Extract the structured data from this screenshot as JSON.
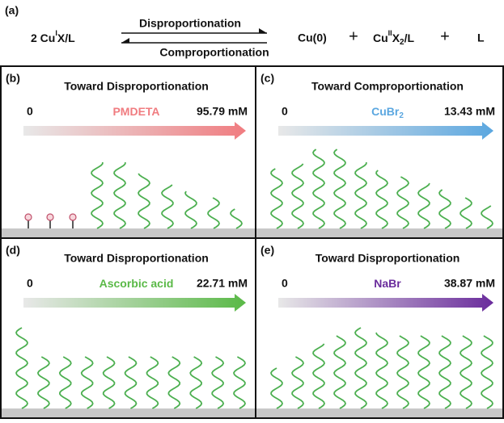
{
  "header": {
    "label": "(a)",
    "reactant": [
      "2 Cu",
      "I",
      "X/L"
    ],
    "forward": "Disproportionation",
    "backward": "Comproportionation",
    "products": {
      "copper": "Cu(0)",
      "plus1": "+",
      "complex": [
        "Cu",
        "II",
        "X",
        "2",
        "/L"
      ],
      "plus2": "+",
      "ligand": "L"
    }
  },
  "panels": [
    {
      "label": "(b)",
      "title": "Toward Disproportionation",
      "start": "0",
      "reagent": [
        "PMDETA"
      ],
      "end": "95.79 mM",
      "color": "#f07c80"
    },
    {
      "label": "(c)",
      "title": "Toward Comproportionation",
      "start": "0",
      "reagent": [
        "CuBr",
        "2"
      ],
      "end": "13.43 mM",
      "color": "#5ba7e0"
    },
    {
      "label": "(d)",
      "title": "Toward Disproportionation",
      "start": "0",
      "reagent": [
        "Ascorbic acid"
      ],
      "end": "22.71 mM",
      "color": "#5ab947"
    },
    {
      "label": "(e)",
      "title": "Toward Disproportionation",
      "start": "0",
      "reagent": [
        "NaBr"
      ],
      "end": "38.87 mM",
      "color": "#6a2c9c"
    }
  ]
}
